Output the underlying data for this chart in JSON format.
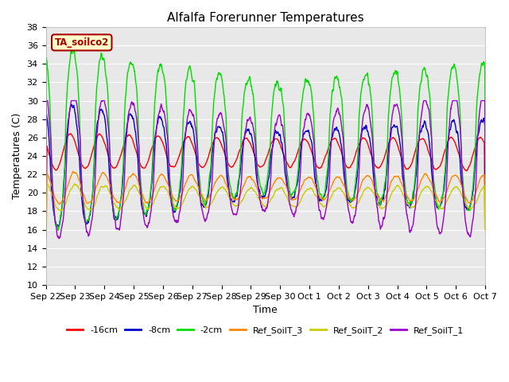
{
  "title": "Alfalfa Forerunner Temperatures",
  "xlabel": "Time",
  "ylabel": "Temperatures (C)",
  "ylim": [
    10,
    38
  ],
  "yticks": [
    10,
    12,
    14,
    16,
    18,
    20,
    22,
    24,
    26,
    28,
    30,
    32,
    34,
    36,
    38
  ],
  "annotation_text": "TA_soilco2",
  "annotation_color": "#aa0000",
  "annotation_bg": "#ffffcc",
  "annotation_edge": "#aa0000",
  "plot_bg": "#e8e8e8",
  "line_colors": {
    "-16cm": "#ff0000",
    "-8cm": "#0000cc",
    "-2cm": "#00dd00",
    "Ref_SoilT_3": "#ff8800",
    "Ref_SoilT_2": "#cccc00",
    "Ref_SoilT_1": "#9900cc"
  },
  "x_tick_labels": [
    "Sep 22",
    "Sep 23",
    "Sep 24",
    "Sep 25",
    "Sep 26",
    "Sep 27",
    "Sep 28",
    "Sep 29",
    "Sep 30",
    "Oct 1",
    "Oct 2",
    "Oct 3",
    "Oct 4",
    "Oct 5",
    "Oct 6",
    "Oct 7"
  ],
  "n_points": 1440,
  "days": 15
}
